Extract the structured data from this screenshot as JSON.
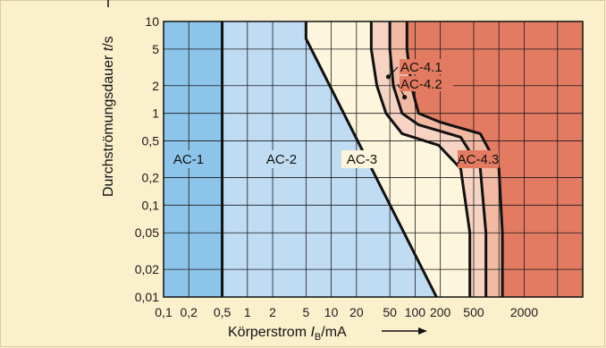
{
  "chart_data": {
    "type": "area",
    "xscale": "log",
    "yscale": "log",
    "xlim": [
      0.1,
      10000
    ],
    "ylim": [
      0.01,
      10
    ],
    "x_tick_labels": [
      "0,1",
      "0,2",
      "0,5",
      "1",
      "2",
      "5",
      "10",
      "20",
      "50",
      "100",
      "200",
      "500",
      "2000"
    ],
    "x_tick_values": [
      0.1,
      0.2,
      0.5,
      1,
      2,
      5,
      10,
      20,
      50,
      100,
      200,
      500,
      2000
    ],
    "y_tick_labels": [
      "0,01",
      "0,02",
      "0,05",
      "0,1",
      "0,2",
      "0,5",
      "1",
      "2",
      "5",
      "10"
    ],
    "y_tick_values": [
      0.01,
      0.02,
      0.05,
      0.1,
      0.2,
      0.5,
      1,
      2,
      5,
      10
    ],
    "xlabel": "Körperstrom I_B/mA",
    "xlabel_parts": {
      "main": "Körperstrom ",
      "var": "I",
      "sub": "B",
      "unit": "/mA"
    },
    "ylabel": "Durchströmungsdauer t/s",
    "ylabel_parts": {
      "main": "Durchströmungsdauer ",
      "var": "t",
      "unit": "/s"
    },
    "grid": true,
    "zones": [
      {
        "name": "AC-1",
        "label": "AC-1",
        "color": "#8cc4ea"
      },
      {
        "name": "AC-2",
        "label": "AC-2",
        "color": "#c0dcf3"
      },
      {
        "name": "AC-3",
        "label": "AC-3",
        "color": "#fdf5dc"
      },
      {
        "name": "AC-4.1",
        "label": "AC-4.1",
        "color": "#f6d3c2"
      },
      {
        "name": "AC-4.2",
        "label": "AC-4.2",
        "color": "#f2baa3"
      },
      {
        "name": "AC-4.3",
        "label": "AC-4.3",
        "color": "#e27b61"
      }
    ],
    "curves": [
      {
        "name": "a",
        "points": [
          [
            0.5,
            0.01
          ],
          [
            0.5,
            10
          ]
        ]
      },
      {
        "name": "b",
        "points": [
          [
            5,
            10
          ],
          [
            5,
            6.5
          ],
          [
            180,
            0.01
          ]
        ]
      },
      {
        "name": "c1",
        "points": [
          [
            30,
            10
          ],
          [
            30,
            5
          ],
          [
            35,
            2
          ],
          [
            45,
            1
          ],
          [
            70,
            0.6
          ],
          [
            190,
            0.45
          ],
          [
            350,
            0.25
          ],
          [
            450,
            0.05
          ],
          [
            450,
            0.01
          ]
        ]
      },
      {
        "name": "c2",
        "points": [
          [
            50,
            10
          ],
          [
            50,
            5
          ],
          [
            55,
            2
          ],
          [
            70,
            1
          ],
          [
            110,
            0.75
          ],
          [
            350,
            0.55
          ],
          [
            600,
            0.25
          ],
          [
            700,
            0.05
          ],
          [
            700,
            0.01
          ]
        ]
      },
      {
        "name": "c3",
        "points": [
          [
            80,
            10
          ],
          [
            80,
            5
          ],
          [
            90,
            2
          ],
          [
            110,
            1
          ],
          [
            200,
            0.8
          ],
          [
            600,
            0.6
          ],
          [
            1000,
            0.25
          ],
          [
            1100,
            0.05
          ],
          [
            1100,
            0.01
          ]
        ]
      }
    ],
    "annotations": [
      {
        "text": "AC-4.1",
        "x": 48,
        "y": 2.5
      },
      {
        "text": "AC-4.2",
        "x": 75,
        "y": 1.5
      }
    ],
    "colors": {
      "axis_line": "#111111",
      "grid_line": "#1a1a1a",
      "background": "#fbf0cc"
    }
  }
}
